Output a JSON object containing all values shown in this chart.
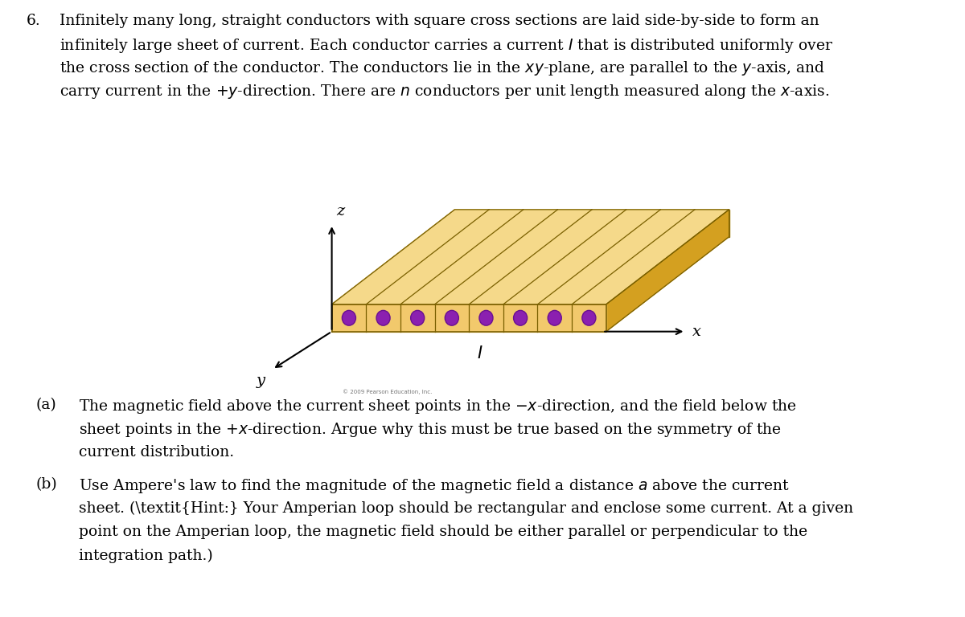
{
  "background_color": "#ffffff",
  "figure_width": 12.0,
  "figure_height": 7.68,
  "conductor_face_color": "#F2C96C",
  "conductor_face_darker": "#D4A020",
  "conductor_top_color": "#F5D98A",
  "conductor_side_color": "#D4A020",
  "conductor_edge_color": "#7A6000",
  "dot_color": "#8B20B0",
  "dot_edge_color": "#6A1090",
  "text_color": "#000000",
  "x_label": "x",
  "y_label": "y",
  "z_label": "z",
  "I_label": "I",
  "n_conductors": 8,
  "n_dividers": 8,
  "copyright": "© 2009 Pearson Education, Inc."
}
